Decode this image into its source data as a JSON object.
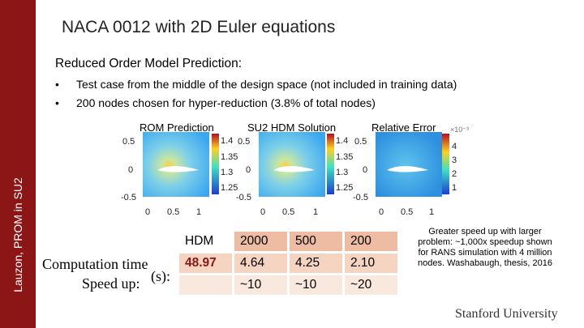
{
  "sidebar": {
    "text": "Lauzon, PROM in SU2"
  },
  "slide": {
    "title": "NACA 0012 with 2D Euler equations",
    "subheading": "Reduced Order Model Prediction:",
    "bullets": [
      "Test case from the middle of the design space (not included in training data)",
      "200 nodes chosen for hyper-reduction (3.8% of total nodes)"
    ],
    "bullet_marker": "•"
  },
  "plots": {
    "labels": [
      "ROM Prediction",
      "SU2 HDM Solution",
      "Relative Error"
    ],
    "y_ticks": [
      "0.5",
      "0",
      "-0.5"
    ],
    "x_ticks": [
      "0",
      "0.5",
      "1"
    ],
    "colorbar_pressure": [
      "1.4",
      "1.35",
      "1.3",
      "1.25"
    ],
    "colorbar_error": [
      "4",
      "3",
      "2",
      "1"
    ],
    "error_exponent": "×10⁻³"
  },
  "table": {
    "header": [
      "HDM",
      "2000",
      "500",
      "200"
    ],
    "computation_time": [
      "48.97",
      "4.64",
      "4.25",
      "2.10"
    ],
    "speed_up": [
      "",
      "~10",
      "~10",
      "~20"
    ]
  },
  "row_labels": {
    "computation": "Computation time",
    "speed": "Speed up:",
    "unit_overlap": "(s):"
  },
  "note": "Greater speed up with larger problem: ~1,000x speedup shown for RANS simulation with 4 million nodes. Washabaugh, thesis, 2016",
  "logo": "Stanford University",
  "colors": {
    "cardinal": "#8c1515",
    "table_cell": "#f5d5c2",
    "table_header": "#eebca3"
  }
}
